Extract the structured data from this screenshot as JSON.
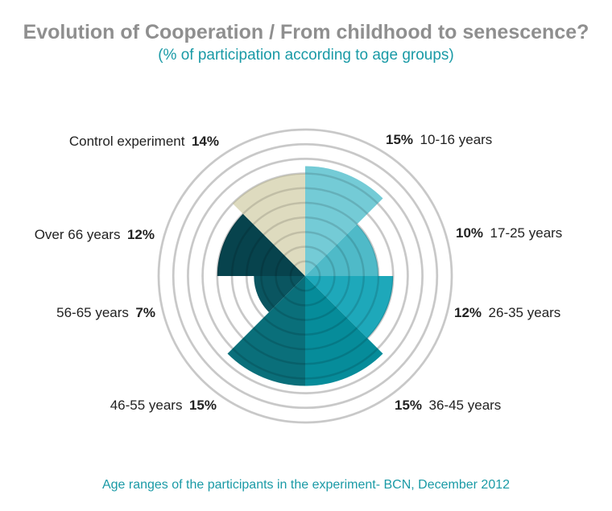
{
  "chart_data": {
    "type": "polar-area",
    "title": "Evolution of Cooperation / From childhood to senescence?",
    "subtitle": "(% of participation according to age groups)",
    "caption": "Age ranges of the participants in the experiment- BCN, December 2012",
    "unit": "%",
    "max": 20,
    "rings": [
      2,
      4,
      6,
      8,
      10,
      12,
      14,
      16,
      18,
      20
    ],
    "segments": [
      {
        "label": "10-16 years",
        "value": 15,
        "value_text": "15%",
        "color": "#74cbd6"
      },
      {
        "label": "17-25 years",
        "value": 10,
        "value_text": "10%",
        "color": "#4fbac8"
      },
      {
        "label": "26-35 years",
        "value": 12,
        "value_text": "12%",
        "color": "#1ea8ba"
      },
      {
        "label": "36-45 years",
        "value": 15,
        "value_text": "15%",
        "color": "#068c9a"
      },
      {
        "label": "46-55 years",
        "value": 15,
        "value_text": "15%",
        "color": "#0a6f7a"
      },
      {
        "label": "56-65 years",
        "value": 7,
        "value_text": "7%",
        "color": "#0a5560"
      },
      {
        "label": "Over 66 years",
        "value": 12,
        "value_text": "12%",
        "color": "#07434d"
      },
      {
        "label": "Control experiment",
        "value": 14,
        "value_text": "14%",
        "color": "#dedbbf"
      }
    ]
  }
}
